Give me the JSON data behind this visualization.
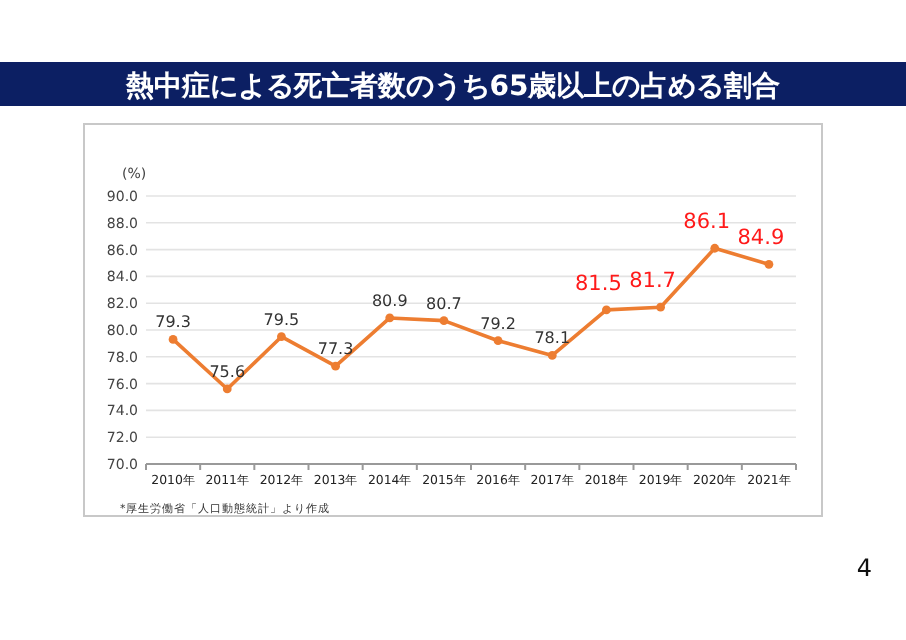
{
  "chart_data": {
    "type": "line",
    "title": "熱中症による死亡者数のうち65歳以上の占める割合",
    "ylabel": "(%)",
    "categories": [
      "2010年",
      "2011年",
      "2012年",
      "2013年",
      "2014年",
      "2015年",
      "2016年",
      "2017年",
      "2018年",
      "2019年",
      "2020年",
      "2021年"
    ],
    "series": [
      {
        "color": "#ed7d31",
        "values": [
          79.3,
          75.6,
          79.5,
          77.3,
          80.9,
          80.7,
          79.2,
          78.1,
          81.5,
          81.7,
          86.1,
          84.9
        ]
      }
    ],
    "value_labels": [
      "79.3",
      "75.6",
      "79.5",
      "77.3",
      "80.9",
      "80.7",
      "79.2",
      "78.1",
      null,
      null,
      null,
      null
    ],
    "annotations": [
      "*厚生労働省「人口動態統計」より作成",
      "4",
      {
        "text": "81.5",
        "x": "2018年",
        "y": 81.5
      },
      {
        "text": "81.7",
        "x": "2019年",
        "y": 81.7
      },
      {
        "text": "86.1",
        "x": "2020年",
        "y": 86.1
      },
      {
        "text": "84.9",
        "x": "2021年",
        "y": 84.9
      }
    ],
    "ylim": [
      70,
      90
    ],
    "yticks": [
      {
        "value": 70,
        "label": "70.0"
      },
      {
        "value": 72,
        "label": "72.0"
      },
      {
        "value": 74,
        "label": "74.0"
      },
      {
        "value": 76,
        "label": "76.0"
      },
      {
        "value": 78,
        "label": "78.0"
      },
      {
        "value": 80,
        "label": "80.0"
      },
      {
        "value": 82,
        "label": "82.0"
      },
      {
        "value": 84,
        "label": "84.0"
      },
      {
        "value": 86,
        "label": "86.0"
      },
      {
        "value": 88,
        "label": "88.0"
      },
      {
        "value": 90,
        "label": "90.0"
      }
    ],
    "grid": "y",
    "marker": "circle",
    "line_style": "solid"
  }
}
